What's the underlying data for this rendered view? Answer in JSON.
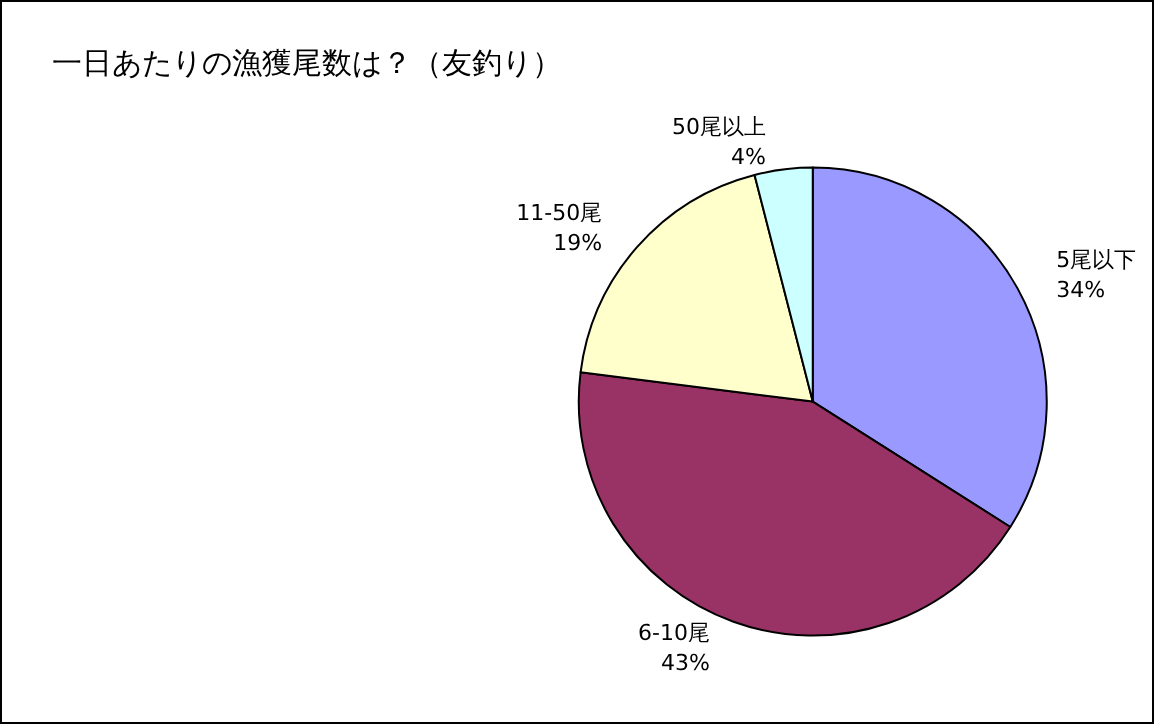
{
  "chart_data": {
    "type": "pie",
    "title": "一日あたりの漁獲尾数は？（友釣り）",
    "categories": [
      "5尾以下",
      "6-10尾",
      "11-50尾",
      "50尾以上"
    ],
    "values": [
      34,
      43,
      19,
      4
    ],
    "colors": [
      "#9999ff",
      "#993366",
      "#ffffcc",
      "#ccffff"
    ],
    "value_labels": [
      "34%",
      "43%",
      "19%",
      "4%"
    ],
    "legend": false
  }
}
